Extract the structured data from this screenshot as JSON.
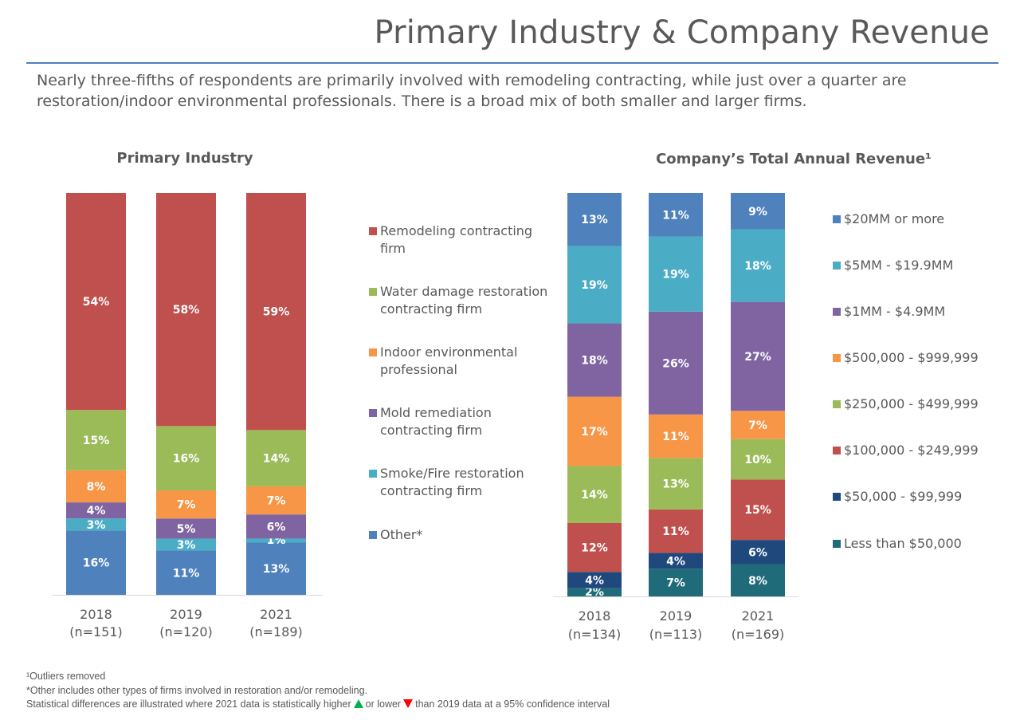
{
  "page": {
    "title": "Primary Industry & Company Revenue",
    "subtitle": "Nearly three-fifths of respondents are primarily involved with remodeling contracting, while just over a quarter are restoration/indoor environmental professionals. There is a broad mix of both smaller and larger firms."
  },
  "footnotes": {
    "outliers": "¹Outliers removed",
    "other_note": "*Other includes other types of firms involved in restoration and/or remodeling.",
    "stat_prefix": "Statistical differences are illustrated where 2021 data is statistically higher",
    "stat_middle": "or lower",
    "stat_suffix": "than 2019 data at a 95% confidence interval",
    "higher_color": "#00b050",
    "lower_color": "#ff0000"
  },
  "chart_data": [
    {
      "type": "bar",
      "stacked": true,
      "percent": true,
      "title": "Primary Industry",
      "categories": [
        "2018",
        "2019",
        "2021"
      ],
      "category_notes": [
        "(n=151)",
        "(n=120)",
        "(n=189)"
      ],
      "series": [
        {
          "name": "Other*",
          "color": "#4f81bd",
          "values": [
            16,
            11,
            13
          ]
        },
        {
          "name": "Smoke/Fire restoration contracting firm",
          "color": "#4bacc6",
          "values": [
            3,
            3,
            1
          ]
        },
        {
          "name": "Mold remediation contracting firm",
          "color": "#8064a2",
          "values": [
            4,
            5,
            6
          ]
        },
        {
          "name": "Indoor environmental professional",
          "color": "#f79646",
          "values": [
            8,
            7,
            7
          ]
        },
        {
          "name": "Water damage restoration contracting firm",
          "color": "#9bbb59",
          "values": [
            15,
            16,
            14
          ]
        },
        {
          "name": "Remodeling contracting firm",
          "color": "#c0504d",
          "values": [
            54,
            58,
            59
          ]
        }
      ],
      "legend_order": [
        "Remodeling contracting firm",
        "Water damage restoration contracting firm",
        "Indoor environmental professional",
        "Mold remediation contracting firm",
        "Smoke/Fire restoration contracting firm",
        "Other*"
      ],
      "legend_position": "right",
      "ylim": [
        0,
        100
      ]
    },
    {
      "type": "bar",
      "stacked": true,
      "percent": true,
      "title": "Company’s Total Annual Revenue¹",
      "categories": [
        "2018",
        "2019",
        "2021"
      ],
      "category_notes": [
        "(n=134)",
        "(n=113)",
        "(n=169)"
      ],
      "series": [
        {
          "name": "Less than $50,000",
          "color": "#1f6b7a",
          "values": [
            2,
            7,
            8
          ]
        },
        {
          "name": "$50,000 - $99,999",
          "color": "#1f497d",
          "values": [
            4,
            4,
            6
          ]
        },
        {
          "name": "$100,000 - $249,999",
          "color": "#c0504d",
          "values": [
            12,
            11,
            15
          ]
        },
        {
          "name": "$250,000 - $499,999",
          "color": "#9bbb59",
          "values": [
            14,
            13,
            10
          ]
        },
        {
          "name": "$500,000 - $999,999",
          "color": "#f79646",
          "values": [
            17,
            11,
            7
          ]
        },
        {
          "name": "$1MM - $4.9MM",
          "color": "#8064a2",
          "values": [
            18,
            26,
            27
          ]
        },
        {
          "name": "$5MM - $19.9MM",
          "color": "#4bacc6",
          "values": [
            19,
            19,
            18
          ]
        },
        {
          "name": "$20MM or more",
          "color": "#4f81bd",
          "values": [
            13,
            11,
            9
          ]
        }
      ],
      "legend_order": [
        "$20MM or more",
        "$5MM - $19.9MM",
        "$1MM - $4.9MM",
        "$500,000 - $999,999",
        "$250,000 - $499,999",
        "$100,000 - $249,999",
        "$50,000 - $99,999",
        "Less than $50,000"
      ],
      "legend_position": "right",
      "ylim": [
        0,
        100
      ]
    }
  ]
}
